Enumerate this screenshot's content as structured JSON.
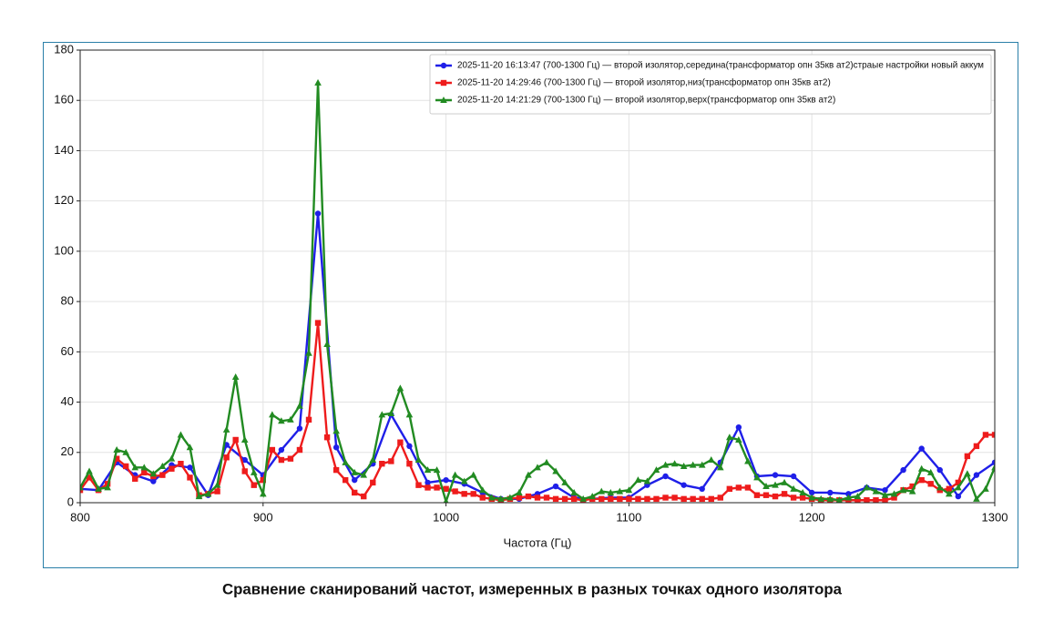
{
  "chart_data": {
    "type": "line",
    "xlabel": "Частота (Гц)",
    "caption": "Сравнение сканирований частот, измеренных в разных точках одного изолятора",
    "xlim": [
      800,
      1300
    ],
    "xticks": [
      800,
      900,
      1000,
      1100,
      1200,
      1300
    ],
    "ylim": [
      0,
      180
    ],
    "yticks": [
      0,
      20,
      40,
      60,
      80,
      100,
      120,
      140,
      160,
      180
    ],
    "grid": true,
    "legend": "upper right",
    "series": [
      {
        "name": "2025-11-20 16:13:47 (700-1300 Гц) — второй изолятор,середина(трансформатор опн 35кв ат2)страые настройки новый аккум",
        "color": "#1f1fe8",
        "marker": "circle",
        "x": [
          800,
          810,
          820,
          830,
          840,
          850,
          860,
          870,
          880,
          890,
          900,
          910,
          920,
          930,
          940,
          950,
          960,
          970,
          980,
          990,
          1000,
          1010,
          1020,
          1030,
          1040,
          1050,
          1060,
          1070,
          1080,
          1090,
          1100,
          1110,
          1120,
          1130,
          1140,
          1150,
          1160,
          1170,
          1180,
          1190,
          1200,
          1210,
          1220,
          1230,
          1240,
          1250,
          1260,
          1270,
          1280,
          1290,
          1300
        ],
        "values": [
          5.5,
          5,
          16,
          11,
          8.5,
          15,
          14,
          3,
          23,
          17,
          11,
          21,
          29.5,
          115,
          22,
          9,
          15.5,
          35,
          22.5,
          8,
          9,
          7.5,
          4,
          1.5,
          1.5,
          3.5,
          6.5,
          2,
          1.5,
          2,
          2,
          7,
          10.5,
          7,
          5.5,
          16,
          30,
          10.5,
          11,
          10.5,
          4,
          4,
          3.5,
          6,
          5,
          13,
          21.5,
          13,
          2.5,
          11,
          16
        ]
      },
      {
        "name": "2025-11-20 14:29:46 (700-1300 Гц) — второй изолятор,низ(трансформатор опн 35кв ат2)",
        "color": "#ee1c1c",
        "marker": "square",
        "x": [
          800,
          805,
          810,
          815,
          820,
          825,
          830,
          835,
          840,
          845,
          850,
          855,
          860,
          865,
          870,
          875,
          880,
          885,
          890,
          895,
          900,
          905,
          910,
          915,
          920,
          925,
          930,
          935,
          940,
          945,
          950,
          955,
          960,
          965,
          970,
          975,
          980,
          985,
          990,
          995,
          1000,
          1005,
          1010,
          1015,
          1020,
          1025,
          1030,
          1035,
          1040,
          1045,
          1050,
          1055,
          1060,
          1065,
          1070,
          1075,
          1080,
          1085,
          1090,
          1095,
          1100,
          1105,
          1110,
          1115,
          1120,
          1125,
          1130,
          1135,
          1140,
          1145,
          1150,
          1155,
          1160,
          1165,
          1170,
          1175,
          1180,
          1185,
          1190,
          1195,
          1200,
          1205,
          1210,
          1215,
          1220,
          1225,
          1230,
          1235,
          1240,
          1245,
          1250,
          1255,
          1260,
          1265,
          1270,
          1275,
          1280,
          1285,
          1290,
          1295,
          1300
        ],
        "values": [
          5,
          10,
          5,
          7.5,
          17.5,
          14.5,
          9.5,
          12,
          10.5,
          11,
          13.5,
          15.5,
          10,
          3,
          3.5,
          4.5,
          18,
          25,
          12.5,
          7,
          9,
          21,
          17,
          17.5,
          21,
          33,
          71.5,
          26,
          13,
          9,
          4,
          2.5,
          8,
          15.5,
          16.5,
          24,
          15.5,
          7,
          6,
          6,
          5.5,
          4.5,
          3.5,
          3.5,
          2,
          1.5,
          1,
          1.5,
          2,
          2.5,
          2,
          2,
          1.5,
          1.5,
          1.5,
          1,
          1.5,
          1.5,
          1.5,
          1.5,
          1.5,
          1.5,
          1.5,
          1.5,
          2,
          2,
          1.5,
          1.5,
          1.5,
          1.5,
          2,
          5.5,
          6,
          6,
          3,
          3,
          2.5,
          3.5,
          2,
          2,
          1.5,
          1,
          1,
          1,
          1,
          1,
          1,
          1,
          1,
          2,
          5,
          6.5,
          9,
          7.5,
          5,
          5.5,
          8,
          18.5,
          22.5,
          27,
          27
        ]
      },
      {
        "name": "2025-11-20 14:21:29 (700-1300 Гц) — второй изолятор,верх(трансформатор опн 35кв ат2)",
        "color": "#228b22",
        "marker": "triangle",
        "x": [
          800,
          805,
          810,
          815,
          820,
          825,
          830,
          835,
          840,
          845,
          850,
          855,
          860,
          865,
          870,
          875,
          880,
          885,
          890,
          895,
          900,
          905,
          910,
          915,
          920,
          925,
          930,
          935,
          940,
          945,
          950,
          955,
          960,
          965,
          970,
          975,
          980,
          985,
          990,
          995,
          1000,
          1005,
          1010,
          1015,
          1020,
          1025,
          1030,
          1035,
          1040,
          1045,
          1050,
          1055,
          1060,
          1065,
          1070,
          1075,
          1080,
          1085,
          1090,
          1095,
          1100,
          1105,
          1110,
          1115,
          1120,
          1125,
          1130,
          1135,
          1140,
          1145,
          1150,
          1155,
          1160,
          1165,
          1170,
          1175,
          1180,
          1185,
          1190,
          1195,
          1200,
          1205,
          1210,
          1215,
          1220,
          1225,
          1230,
          1235,
          1240,
          1245,
          1250,
          1255,
          1260,
          1265,
          1270,
          1275,
          1280,
          1285,
          1290,
          1295,
          1300
        ],
        "values": [
          6,
          12.5,
          5.5,
          6,
          21,
          20,
          14,
          14,
          11.5,
          14.5,
          17.5,
          27,
          22,
          2.5,
          3.5,
          7,
          29,
          50,
          25,
          12,
          3.5,
          35,
          32.5,
          33,
          38.5,
          59.5,
          167,
          63,
          28.5,
          16,
          12,
          11,
          17,
          35,
          35.5,
          45.5,
          35,
          17,
          13,
          13,
          0.5,
          11,
          8.5,
          11,
          5,
          2,
          1.5,
          2,
          4,
          11,
          14,
          16,
          12.5,
          8,
          4,
          1.5,
          2.5,
          4.5,
          4,
          4.5,
          5,
          9,
          8.5,
          13,
          15,
          15.5,
          14.5,
          15,
          15,
          17,
          14,
          26,
          25,
          16.5,
          10,
          6.5,
          7,
          8,
          5.5,
          4,
          2,
          1.5,
          1.5,
          1,
          2,
          2.5,
          6,
          4.5,
          3,
          3.5,
          5,
          4.5,
          13.5,
          12,
          6,
          3.5,
          6,
          11.5,
          1.5,
          5.5,
          14
        ]
      }
    ]
  }
}
